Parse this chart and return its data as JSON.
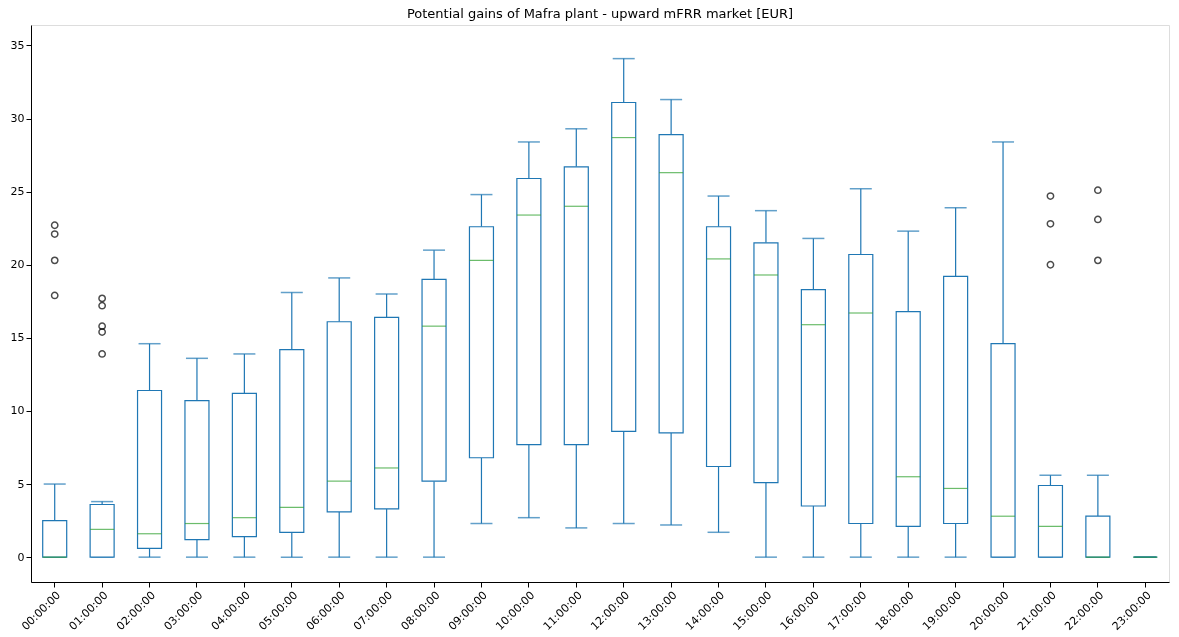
{
  "chart_data": {
    "type": "box",
    "title": "Potential gains of Mafra plant - upward mFRR market [EUR]",
    "categories": [
      "00:00:00",
      "01:00:00",
      "02:00:00",
      "03:00:00",
      "04:00:00",
      "05:00:00",
      "06:00:00",
      "07:00:00",
      "08:00:00",
      "09:00:00",
      "10:00:00",
      "11:00:00",
      "12:00:00",
      "13:00:00",
      "14:00:00",
      "15:00:00",
      "16:00:00",
      "17:00:00",
      "18:00:00",
      "19:00:00",
      "20:00:00",
      "21:00:00",
      "22:00:00",
      "23:00:00"
    ],
    "ylim": [
      -1.7,
      36.4
    ],
    "yticks": [
      0,
      5,
      10,
      15,
      20,
      25,
      30,
      35
    ],
    "grid": false,
    "series": [
      {
        "color": "#1f77b4",
        "boxes": [
          {
            "low": 0,
            "q1": 0,
            "median": 0,
            "q3": 2.5,
            "high": 5.0,
            "outliers": [
              17.9,
              20.3,
              22.1,
              22.7
            ]
          },
          {
            "low": 0,
            "q1": 0,
            "median": 1.9,
            "q3": 3.6,
            "high": 3.8,
            "outliers": [
              13.9,
              15.4,
              15.8,
              17.2,
              17.7
            ]
          },
          {
            "low": 0,
            "q1": 0.6,
            "median": 1.6,
            "q3": 11.4,
            "high": 14.6
          },
          {
            "low": 0,
            "q1": 1.2,
            "median": 2.3,
            "q3": 10.7,
            "high": 13.6
          },
          {
            "low": 0,
            "q1": 1.4,
            "median": 2.7,
            "q3": 11.2,
            "high": 13.9
          },
          {
            "low": 0,
            "q1": 1.7,
            "median": 3.4,
            "q3": 14.2,
            "high": 18.1
          },
          {
            "low": 0,
            "q1": 3.1,
            "median": 5.2,
            "q3": 16.1,
            "high": 19.1
          },
          {
            "low": 0,
            "q1": 3.3,
            "median": 6.1,
            "q3": 16.4,
            "high": 18.0
          },
          {
            "low": 0,
            "q1": 5.2,
            "median": 15.8,
            "q3": 19.0,
            "high": 21.0
          },
          {
            "low": 2.3,
            "q1": 6.8,
            "median": 20.3,
            "q3": 22.6,
            "high": 24.8
          },
          {
            "low": 2.7,
            "q1": 7.7,
            "median": 23.4,
            "q3": 25.9,
            "high": 28.4
          },
          {
            "low": 2.0,
            "q1": 7.7,
            "median": 24.0,
            "q3": 26.7,
            "high": 29.3
          },
          {
            "low": 2.3,
            "q1": 8.6,
            "median": 28.7,
            "q3": 31.1,
            "high": 34.1
          },
          {
            "low": 2.2,
            "q1": 8.5,
            "median": 26.3,
            "q3": 28.9,
            "high": 31.3
          },
          {
            "low": 1.7,
            "q1": 6.2,
            "median": 20.4,
            "q3": 22.6,
            "high": 24.7
          },
          {
            "low": 0,
            "q1": 5.1,
            "median": 19.3,
            "q3": 21.5,
            "high": 23.7
          },
          {
            "low": 0,
            "q1": 3.5,
            "median": 15.9,
            "q3": 18.3,
            "high": 21.8
          },
          {
            "low": 0,
            "q1": 2.3,
            "median": 16.7,
            "q3": 20.7,
            "high": 25.2
          },
          {
            "low": 0,
            "q1": 2.1,
            "median": 5.5,
            "q3": 16.8,
            "high": 22.3
          },
          {
            "low": 0,
            "q1": 2.3,
            "median": 4.7,
            "q3": 19.2,
            "high": 23.9
          },
          {
            "low": 0,
            "q1": 0,
            "median": 2.8,
            "q3": 14.6,
            "high": 28.4
          },
          {
            "low": 0,
            "q1": 0,
            "median": 2.1,
            "q3": 4.9,
            "high": 5.6,
            "outliers": [
              20.0,
              22.8,
              24.7
            ]
          },
          {
            "low": 0,
            "q1": 0,
            "median": 0,
            "q3": 2.8,
            "high": 5.6,
            "outliers": [
              20.3,
              23.1,
              25.1
            ]
          },
          {
            "low": 0,
            "q1": 0,
            "median": 0,
            "q3": 0,
            "high": 0
          }
        ]
      }
    ]
  }
}
